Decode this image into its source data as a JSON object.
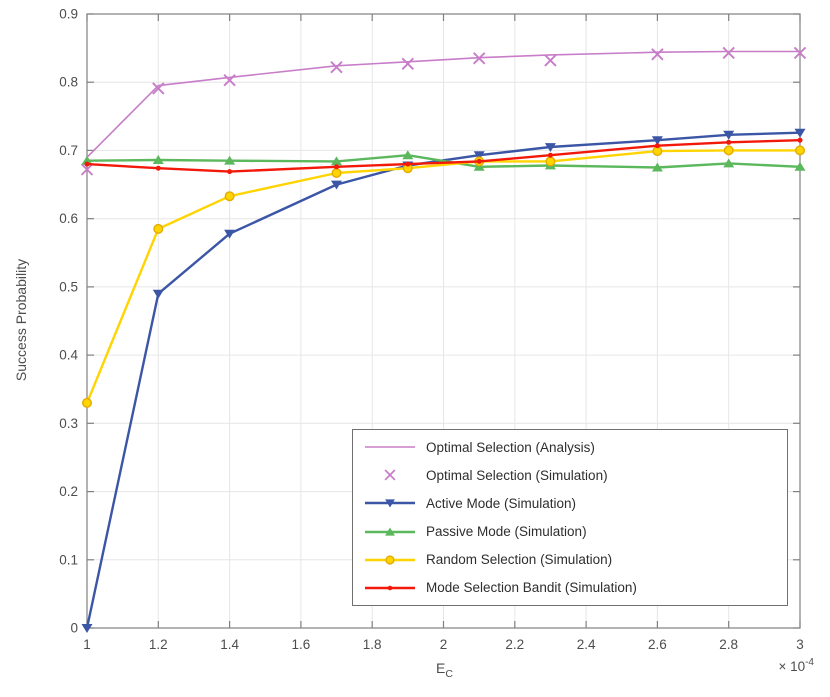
{
  "figure": {
    "background": "#ffffff",
    "axis_color": "#808080",
    "grid_color": "#e6e6e6",
    "tick_label_color": "#4d4d4d"
  },
  "chart_data": {
    "type": "line",
    "ylabel": "Success Probability",
    "xlabel": {
      "base": "E",
      "sub": "C"
    },
    "x_multiplier": {
      "base": "× 10",
      "exp": "-4"
    },
    "xlim": [
      1,
      3
    ],
    "ylim": [
      0,
      0.9
    ],
    "x_ticks": [
      1,
      1.2,
      1.4,
      1.6,
      1.8,
      2,
      2.2,
      2.4,
      2.6,
      2.8,
      3
    ],
    "x_tick_labels": [
      "1",
      "1.2",
      "1.4",
      "1.6",
      "1.8",
      "2",
      "2.2",
      "2.4",
      "2.6",
      "2.8",
      "3"
    ],
    "y_ticks": [
      0,
      0.1,
      0.2,
      0.3,
      0.4,
      0.5,
      0.6,
      0.7,
      0.8,
      0.9
    ],
    "y_tick_labels": [
      "0",
      "0.1",
      "0.2",
      "0.3",
      "0.4",
      "0.5",
      "0.6",
      "0.7",
      "0.8",
      "0.9"
    ],
    "grid": true,
    "legend_position": "inside lower right",
    "x": [
      1,
      1.2,
      1.4,
      1.7,
      1.9,
      2.1,
      2.3,
      2.6,
      2.8,
      3
    ],
    "series": [
      {
        "name": "Optimal Selection (Analysis)",
        "color": "#c87dc8",
        "marker": "none",
        "line": true,
        "line_width": 1.6,
        "values": [
          0.69,
          0.795,
          0.807,
          0.824,
          0.83,
          0.836,
          0.84,
          0.844,
          0.845,
          0.845
        ]
      },
      {
        "name": "Optimal Selection (Simulation)",
        "color": "#c87dc8",
        "marker": "x",
        "line": false,
        "line_width": 0,
        "values": [
          0.672,
          0.791,
          0.803,
          0.822,
          0.827,
          0.835,
          0.832,
          0.841,
          0.843,
          0.843
        ]
      },
      {
        "name": "Active Mode (Simulation)",
        "color": "#3c56a6",
        "marker": "triangle-down",
        "line": true,
        "line_width": 2.4,
        "values": [
          0.0,
          0.49,
          0.578,
          0.65,
          0.678,
          0.693,
          0.705,
          0.715,
          0.723,
          0.726
        ]
      },
      {
        "name": "Passive Mode (Simulation)",
        "color": "#5cb85c",
        "marker": "triangle-up",
        "line": true,
        "line_width": 2.4,
        "values": [
          0.685,
          0.686,
          0.685,
          0.684,
          0.693,
          0.676,
          0.678,
          0.675,
          0.681,
          0.676
        ]
      },
      {
        "name": "Random Selection (Simulation)",
        "color": "#ffd400",
        "edge": "#e3ab00",
        "marker": "circle",
        "line": true,
        "line_width": 2.4,
        "values": [
          0.33,
          0.585,
          0.633,
          0.667,
          0.674,
          0.684,
          0.684,
          0.699,
          0.7,
          0.7
        ]
      },
      {
        "name": "Mode Selection Bandit (Simulation)",
        "color": "#f2190a",
        "marker": "dot",
        "line": true,
        "line_width": 2.4,
        "values": [
          0.68,
          0.674,
          0.669,
          0.676,
          0.68,
          0.684,
          0.693,
          0.707,
          0.712,
          0.715
        ]
      }
    ]
  }
}
